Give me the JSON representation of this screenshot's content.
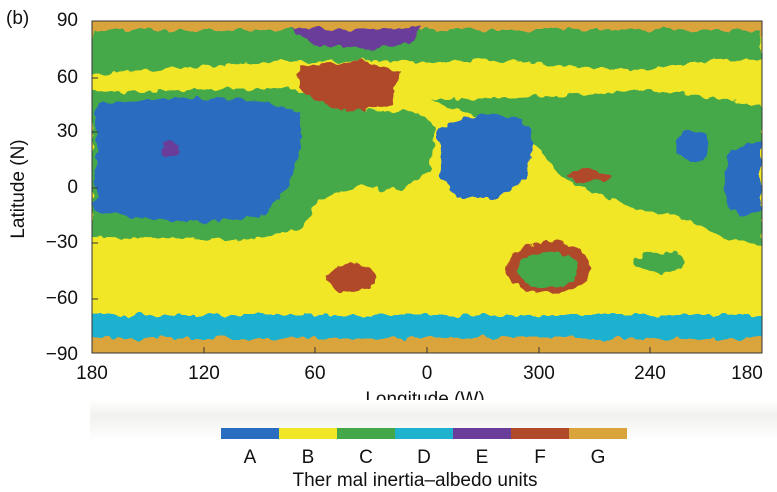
{
  "panel_label": "(b)",
  "colors": {
    "A": "#2a6cbf",
    "B": "#f2e726",
    "C": "#44a84a",
    "D": "#1fb2cf",
    "E": "#6a3d9a",
    "F": "#b04a2a",
    "G": "#d9a43a"
  },
  "chart_data": {
    "type": "heatmap",
    "xlabel": "Longitude (W)",
    "ylabel": "Latitude (N)",
    "x_ticks": [
      "180",
      "120",
      "60",
      "0",
      "300",
      "240",
      "180"
    ],
    "y_ticks": [
      "90",
      "60",
      "30",
      "0",
      "−30",
      "−60",
      "−90"
    ],
    "xlim": [
      180,
      -180
    ],
    "ylim": [
      -90,
      90
    ],
    "legend": {
      "title": "Ther mal inertia–albedo units",
      "units": [
        "A",
        "B",
        "C",
        "D",
        "E",
        "F",
        "G"
      ]
    }
  }
}
